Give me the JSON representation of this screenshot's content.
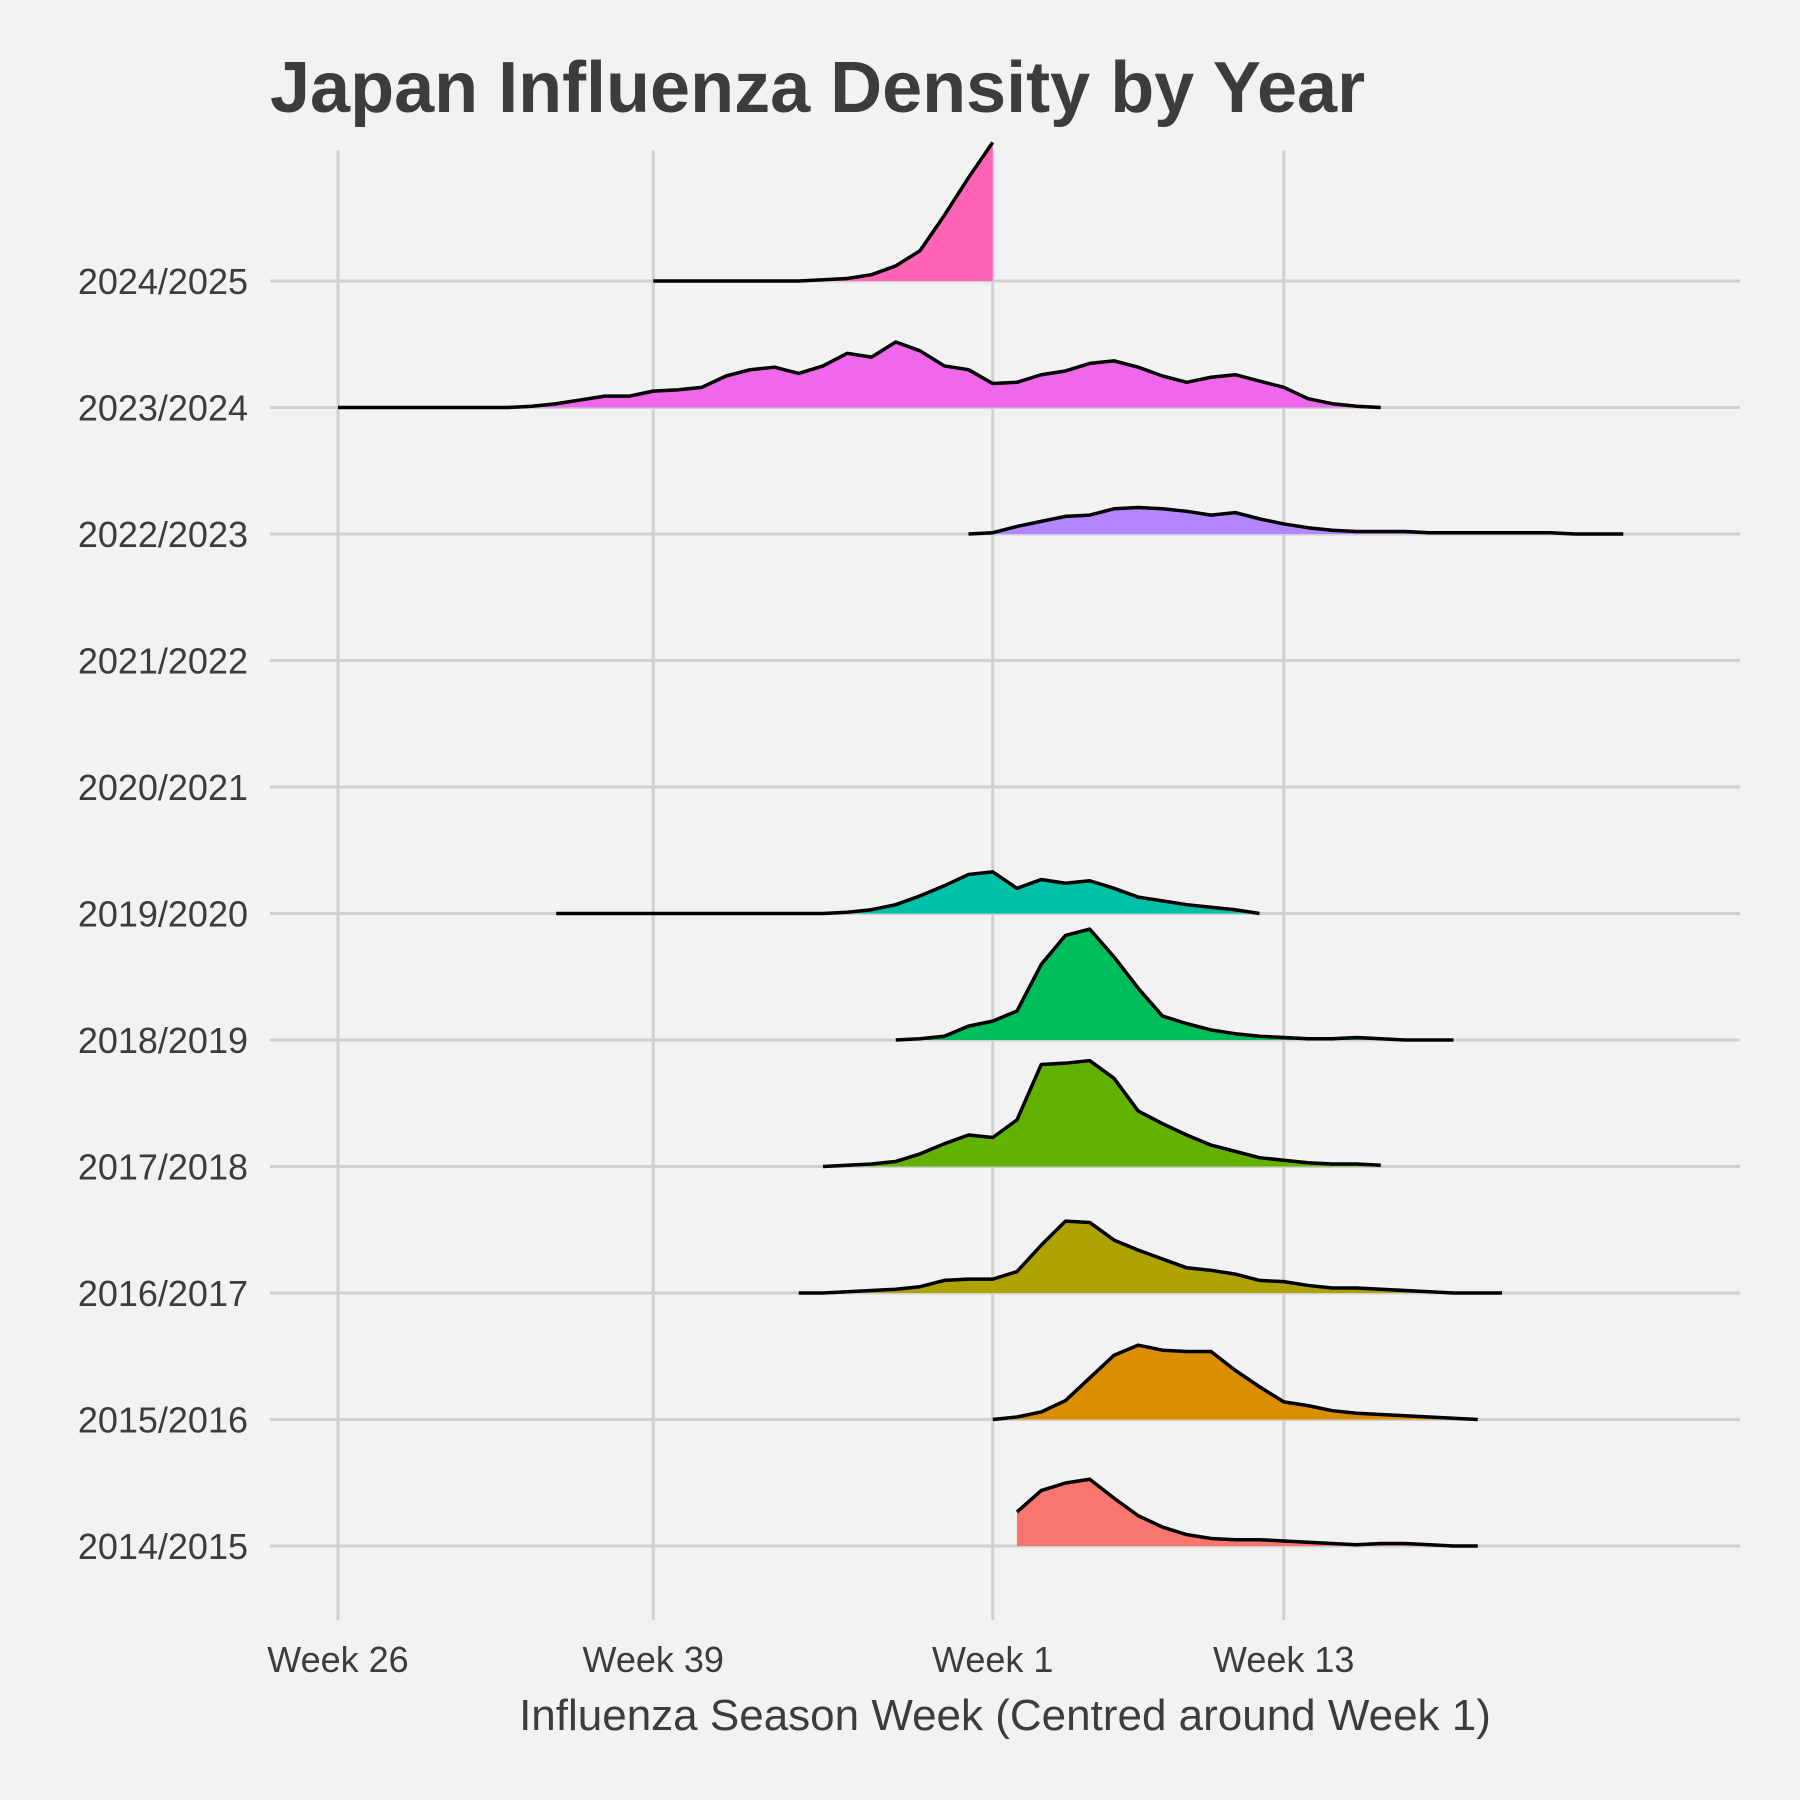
{
  "chart_data": {
    "type": "area",
    "title": "Japan Influenza Density by Year",
    "xlabel": "Influenza Season Week (Centred around Week 1)",
    "ylabel": "",
    "x_tick_labels": [
      "Week 26",
      "Week 39",
      "Week 1",
      "Week 13"
    ],
    "x_tick_positions": [
      0,
      13,
      27,
      39
    ],
    "xlim": [
      -3,
      55
    ],
    "grid": true,
    "legend": "none",
    "line_color": "#000000",
    "series": [
      {
        "name": "2014/2015",
        "color": "#F8766D",
        "x": [
          28,
          29,
          30,
          31,
          32,
          33,
          34,
          35,
          36,
          37,
          38,
          39,
          40,
          41,
          42,
          43,
          44,
          45,
          46,
          47
        ],
        "values": [
          0.27,
          0.44,
          0.5,
          0.53,
          0.38,
          0.24,
          0.15,
          0.09,
          0.06,
          0.05,
          0.05,
          0.04,
          0.03,
          0.02,
          0.01,
          0.02,
          0.02,
          0.01,
          0,
          0
        ]
      },
      {
        "name": "2015/2016",
        "color": "#DB8E00",
        "x": [
          27,
          28,
          29,
          30,
          31,
          32,
          33,
          34,
          35,
          36,
          37,
          38,
          39,
          40,
          41,
          42,
          43,
          44,
          45,
          46,
          47
        ],
        "values": [
          0,
          0.02,
          0.06,
          0.15,
          0.33,
          0.51,
          0.59,
          0.55,
          0.54,
          0.54,
          0.39,
          0.26,
          0.14,
          0.11,
          0.07,
          0.05,
          0.04,
          0.03,
          0.02,
          0.01,
          0
        ]
      },
      {
        "name": "2016/2017",
        "color": "#AEA200",
        "x": [
          19,
          20,
          21,
          22,
          23,
          24,
          25,
          26,
          27,
          28,
          29,
          30,
          31,
          32,
          33,
          34,
          35,
          36,
          37,
          38,
          39,
          40,
          41,
          42,
          43,
          44,
          45,
          46,
          47,
          48
        ],
        "values": [
          0,
          0,
          0.01,
          0.02,
          0.03,
          0.05,
          0.1,
          0.11,
          0.11,
          0.17,
          0.38,
          0.57,
          0.56,
          0.42,
          0.34,
          0.27,
          0.2,
          0.18,
          0.15,
          0.1,
          0.09,
          0.06,
          0.04,
          0.04,
          0.03,
          0.02,
          0.01,
          0,
          0,
          0
        ]
      },
      {
        "name": "2017/2018",
        "color": "#64B200",
        "x": [
          20,
          21,
          22,
          23,
          24,
          25,
          26,
          27,
          28,
          29,
          30,
          31,
          32,
          33,
          34,
          35,
          36,
          37,
          38,
          39,
          40,
          41,
          42,
          43
        ],
        "values": [
          0,
          0.01,
          0.02,
          0.04,
          0.1,
          0.18,
          0.25,
          0.23,
          0.37,
          0.81,
          0.82,
          0.84,
          0.7,
          0.44,
          0.34,
          0.25,
          0.17,
          0.12,
          0.07,
          0.05,
          0.03,
          0.02,
          0.02,
          0.01
        ]
      },
      {
        "name": "2018/2019",
        "color": "#00BD5C",
        "x": [
          23,
          24,
          25,
          26,
          27,
          28,
          29,
          30,
          31,
          32,
          33,
          34,
          35,
          36,
          37,
          38,
          39,
          40,
          41,
          42,
          43,
          44,
          45,
          46
        ],
        "values": [
          0,
          0.01,
          0.03,
          0.11,
          0.15,
          0.23,
          0.6,
          0.83,
          0.88,
          0.66,
          0.41,
          0.19,
          0.13,
          0.08,
          0.05,
          0.03,
          0.02,
          0.01,
          0.01,
          0.02,
          0.01,
          0,
          0,
          0
        ]
      },
      {
        "name": "2019/2020",
        "color": "#00C1A7",
        "x": [
          9,
          10,
          11,
          12,
          13,
          14,
          15,
          16,
          17,
          18,
          19,
          20,
          21,
          22,
          23,
          24,
          25,
          26,
          27,
          28,
          29,
          30,
          31,
          32,
          33,
          34,
          35,
          36,
          37,
          38
        ],
        "values": [
          0,
          0,
          0,
          0,
          0,
          0,
          0,
          0,
          0,
          0,
          0,
          0,
          0.01,
          0.03,
          0.07,
          0.14,
          0.22,
          0.31,
          0.33,
          0.2,
          0.27,
          0.24,
          0.26,
          0.2,
          0.13,
          0.1,
          0.07,
          0.05,
          0.03,
          0
        ]
      },
      {
        "name": "2020/2021",
        "color": "#00BADE",
        "x": [],
        "values": []
      },
      {
        "name": "2021/2022",
        "color": "#00A6FF",
        "x": [],
        "values": []
      },
      {
        "name": "2022/2023",
        "color": "#B385FF",
        "x": [
          26,
          27,
          28,
          29,
          30,
          31,
          32,
          33,
          34,
          35,
          36,
          37,
          38,
          39,
          40,
          41,
          42,
          43,
          44,
          45,
          46,
          47,
          48,
          49,
          50,
          51,
          52,
          53
        ],
        "values": [
          0,
          0.01,
          0.06,
          0.1,
          0.14,
          0.15,
          0.2,
          0.21,
          0.2,
          0.18,
          0.15,
          0.17,
          0.12,
          0.08,
          0.05,
          0.03,
          0.02,
          0.02,
          0.02,
          0.01,
          0.01,
          0.01,
          0.01,
          0.01,
          0.01,
          0,
          0,
          0
        ]
      },
      {
        "name": "2023/2024",
        "color": "#EF67EB",
        "x": [
          0,
          1,
          2,
          3,
          4,
          5,
          6,
          7,
          8,
          9,
          10,
          11,
          12,
          13,
          14,
          15,
          16,
          17,
          18,
          19,
          20,
          21,
          22,
          23,
          24,
          25,
          26,
          27,
          28,
          29,
          30,
          31,
          32,
          33,
          34,
          35,
          36,
          37,
          38,
          39,
          40,
          41,
          42,
          43
        ],
        "values": [
          0,
          0,
          0,
          0,
          0,
          0,
          0,
          0,
          0.01,
          0.03,
          0.06,
          0.09,
          0.09,
          0.13,
          0.14,
          0.16,
          0.25,
          0.3,
          0.32,
          0.27,
          0.33,
          0.43,
          0.4,
          0.52,
          0.45,
          0.33,
          0.3,
          0.19,
          0.2,
          0.26,
          0.29,
          0.35,
          0.37,
          0.32,
          0.25,
          0.2,
          0.24,
          0.26,
          0.21,
          0.16,
          0.07,
          0.03,
          0.01,
          0
        ]
      },
      {
        "name": "2024/2025",
        "color": "#FF63B6",
        "x": [
          13,
          14,
          15,
          16,
          17,
          18,
          19,
          20,
          21,
          22,
          23,
          24,
          25,
          26,
          27
        ],
        "values": [
          0,
          0,
          0,
          0,
          0,
          0,
          0,
          0.01,
          0.02,
          0.05,
          0.12,
          0.24,
          0.52,
          0.82,
          1.1
        ]
      }
    ]
  }
}
